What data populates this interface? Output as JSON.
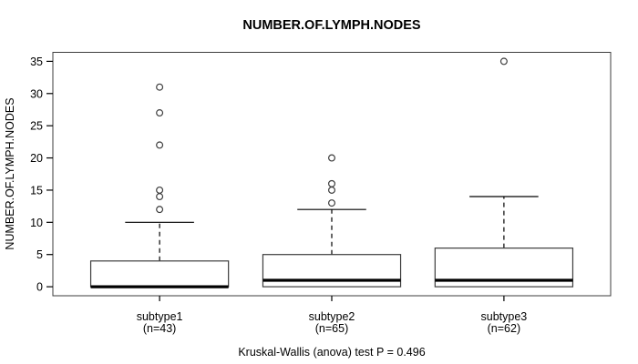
{
  "chart_data": {
    "type": "boxplot",
    "title": "NUMBER.OF.LYMPH.NODES",
    "xlabel": "",
    "ylabel": "NUMBER.OF.LYMPH.NODES",
    "ylim": [
      0,
      35
    ],
    "yticks": [
      0,
      5,
      10,
      15,
      20,
      25,
      30,
      35
    ],
    "grid": false,
    "legend": false,
    "annotation": "Kruskal-Wallis (anova) test P = 0.496",
    "colors": {
      "line": "#000000",
      "frame": "#3d3d3d",
      "box_fill": "#ffffff",
      "background": "#ffffff"
    },
    "groups": [
      {
        "label": "subtype1",
        "n_label": "(n=43)",
        "n": 43,
        "whisker_low": 0,
        "q1": 0,
        "median": 0,
        "q3": 4,
        "whisker_high": 10,
        "outliers": [
          12,
          14,
          15,
          22,
          27,
          31
        ]
      },
      {
        "label": "subtype2",
        "n_label": "(n=65)",
        "n": 65,
        "whisker_low": 0,
        "q1": 0,
        "median": 1,
        "q3": 5,
        "whisker_high": 12,
        "outliers": [
          13,
          15,
          16,
          20
        ]
      },
      {
        "label": "subtype3",
        "n_label": "(n=62)",
        "n": 62,
        "whisker_low": 0,
        "q1": 0,
        "median": 1,
        "q3": 6,
        "whisker_high": 14,
        "outliers": [
          35
        ]
      }
    ]
  }
}
